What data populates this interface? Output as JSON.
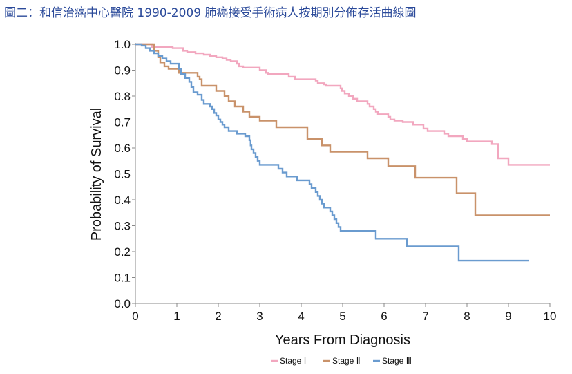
{
  "chart_data": {
    "type": "line",
    "title": "圖二：和信治癌中心醫院 1990-2009 肺癌接受手術病人按期別分佈存活曲線圖",
    "xlabel": "Years From Diagnosis",
    "ylabel": "Probability of Survival",
    "xlim": [
      0,
      10
    ],
    "ylim": [
      0,
      1
    ],
    "x_ticks": [
      "0",
      "1",
      "2",
      "3",
      "4",
      "5",
      "6",
      "7",
      "8",
      "9",
      "10"
    ],
    "y_ticks": [
      "0.0",
      "0.1",
      "0.2",
      "0.3",
      "0.4",
      "0.5",
      "0.6",
      "0.7",
      "0.8",
      "0.9",
      "1.0"
    ],
    "step": true,
    "legend_position": "bottom",
    "series": [
      {
        "name": "Stage Ⅰ",
        "color": "#f2a7bf",
        "points": [
          [
            0,
            1.0
          ],
          [
            0.4,
            0.99
          ],
          [
            0.9,
            0.985
          ],
          [
            1.15,
            0.975
          ],
          [
            1.25,
            0.97
          ],
          [
            1.45,
            0.965
          ],
          [
            1.65,
            0.96
          ],
          [
            1.8,
            0.955
          ],
          [
            1.95,
            0.95
          ],
          [
            2.1,
            0.945
          ],
          [
            2.2,
            0.94
          ],
          [
            2.3,
            0.935
          ],
          [
            2.45,
            0.925
          ],
          [
            2.5,
            0.915
          ],
          [
            2.6,
            0.91
          ],
          [
            3.0,
            0.9
          ],
          [
            3.15,
            0.89
          ],
          [
            3.2,
            0.885
          ],
          [
            3.7,
            0.875
          ],
          [
            3.85,
            0.865
          ],
          [
            4.35,
            0.86
          ],
          [
            4.4,
            0.85
          ],
          [
            4.55,
            0.845
          ],
          [
            4.6,
            0.84
          ],
          [
            4.95,
            0.83
          ],
          [
            4.98,
            0.82
          ],
          [
            5.05,
            0.81
          ],
          [
            5.15,
            0.8
          ],
          [
            5.25,
            0.79
          ],
          [
            5.35,
            0.78
          ],
          [
            5.6,
            0.77
          ],
          [
            5.65,
            0.76
          ],
          [
            5.75,
            0.75
          ],
          [
            5.8,
            0.74
          ],
          [
            5.85,
            0.73
          ],
          [
            6.1,
            0.72
          ],
          [
            6.15,
            0.71
          ],
          [
            6.25,
            0.705
          ],
          [
            6.45,
            0.7
          ],
          [
            6.7,
            0.69
          ],
          [
            6.95,
            0.675
          ],
          [
            7.05,
            0.665
          ],
          [
            7.45,
            0.655
          ],
          [
            7.55,
            0.645
          ],
          [
            7.9,
            0.635
          ],
          [
            8.0,
            0.625
          ],
          [
            8.6,
            0.615
          ],
          [
            8.75,
            0.56
          ],
          [
            9.0,
            0.535
          ],
          [
            10.0,
            0.535
          ]
        ]
      },
      {
        "name": "Stage Ⅱ",
        "color": "#c9926a",
        "points": [
          [
            0,
            1.0
          ],
          [
            0.45,
            0.975
          ],
          [
            0.55,
            0.95
          ],
          [
            0.6,
            0.93
          ],
          [
            0.7,
            0.915
          ],
          [
            0.8,
            0.905
          ],
          [
            1.05,
            0.89
          ],
          [
            1.5,
            0.875
          ],
          [
            1.55,
            0.865
          ],
          [
            1.6,
            0.84
          ],
          [
            1.95,
            0.82
          ],
          [
            2.15,
            0.8
          ],
          [
            2.25,
            0.78
          ],
          [
            2.4,
            0.76
          ],
          [
            2.6,
            0.74
          ],
          [
            2.75,
            0.72
          ],
          [
            3.0,
            0.705
          ],
          [
            3.4,
            0.68
          ],
          [
            4.15,
            0.635
          ],
          [
            4.5,
            0.61
          ],
          [
            4.7,
            0.585
          ],
          [
            5.6,
            0.56
          ],
          [
            6.1,
            0.53
          ],
          [
            6.75,
            0.485
          ],
          [
            7.75,
            0.425
          ],
          [
            8.2,
            0.34
          ],
          [
            10.0,
            0.34
          ]
        ]
      },
      {
        "name": "Stage Ⅲ",
        "color": "#6a9bcf",
        "points": [
          [
            0,
            1.0
          ],
          [
            0.15,
            0.995
          ],
          [
            0.25,
            0.985
          ],
          [
            0.35,
            0.975
          ],
          [
            0.45,
            0.965
          ],
          [
            0.55,
            0.955
          ],
          [
            0.65,
            0.945
          ],
          [
            0.75,
            0.935
          ],
          [
            0.85,
            0.925
          ],
          [
            1.05,
            0.905
          ],
          [
            1.1,
            0.885
          ],
          [
            1.2,
            0.87
          ],
          [
            1.3,
            0.855
          ],
          [
            1.35,
            0.835
          ],
          [
            1.4,
            0.815
          ],
          [
            1.5,
            0.805
          ],
          [
            1.6,
            0.785
          ],
          [
            1.65,
            0.77
          ],
          [
            1.8,
            0.76
          ],
          [
            1.85,
            0.75
          ],
          [
            1.9,
            0.735
          ],
          [
            1.95,
            0.725
          ],
          [
            2.0,
            0.71
          ],
          [
            2.05,
            0.7
          ],
          [
            2.1,
            0.69
          ],
          [
            2.15,
            0.68
          ],
          [
            2.25,
            0.665
          ],
          [
            2.45,
            0.655
          ],
          [
            2.65,
            0.645
          ],
          [
            2.75,
            0.63
          ],
          [
            2.78,
            0.61
          ],
          [
            2.8,
            0.595
          ],
          [
            2.85,
            0.58
          ],
          [
            2.9,
            0.565
          ],
          [
            2.95,
            0.55
          ],
          [
            3.0,
            0.535
          ],
          [
            3.45,
            0.52
          ],
          [
            3.55,
            0.505
          ],
          [
            3.65,
            0.49
          ],
          [
            3.9,
            0.475
          ],
          [
            4.2,
            0.46
          ],
          [
            4.25,
            0.445
          ],
          [
            4.35,
            0.43
          ],
          [
            4.4,
            0.415
          ],
          [
            4.45,
            0.4
          ],
          [
            4.5,
            0.385
          ],
          [
            4.55,
            0.37
          ],
          [
            4.7,
            0.355
          ],
          [
            4.75,
            0.34
          ],
          [
            4.8,
            0.325
          ],
          [
            4.85,
            0.31
          ],
          [
            4.9,
            0.295
          ],
          [
            4.95,
            0.28
          ],
          [
            5.8,
            0.25
          ],
          [
            6.55,
            0.22
          ],
          [
            7.8,
            0.165
          ],
          [
            9.5,
            0.165
          ]
        ]
      }
    ]
  }
}
